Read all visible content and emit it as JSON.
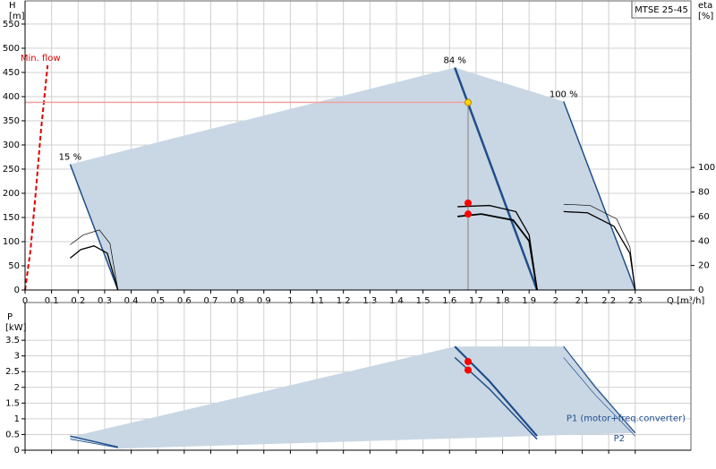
{
  "chart_data": [
    {
      "type": "line",
      "title": "MTSE 25-45",
      "ylabel": "H",
      "yunit": "[m]",
      "y2label": "eta",
      "y2unit": "[%]",
      "xlabel": "Q [m³/h]",
      "xlim": [
        0,
        2.51
      ],
      "xticks": [
        0,
        0.1,
        0.2,
        0.3,
        0.4,
        0.5,
        0.6,
        0.7,
        0.8,
        0.9,
        1,
        1.1,
        1.2,
        1.3,
        1.4,
        1.5,
        1.6,
        1.7,
        1.8,
        1.9,
        2,
        2.1,
        2.2,
        2.3
      ],
      "ylim": [
        0,
        598
      ],
      "yticks": [
        0,
        50,
        100,
        150,
        200,
        250,
        300,
        350,
        400,
        450,
        500,
        550
      ],
      "y2lim": [
        0,
        236
      ],
      "y2ticks": [
        0,
        20,
        40,
        60,
        80,
        100
      ],
      "grid": true,
      "show_xtick_labels": true,
      "series": [
        {
          "fill": true,
          "color": "#c9d7e4",
          "x": [
            0.17,
            1.62,
            2.03,
            2.3,
            0.35
          ],
          "values": [
            260,
            460,
            390,
            0,
            0
          ]
        },
        {
          "name": "15 %",
          "label_at": "start",
          "color": "#1f4e8c",
          "line_width": 1.5,
          "x": [
            0.17,
            0.35
          ],
          "values": [
            260,
            0
          ]
        },
        {
          "name": "84 %",
          "label_at": "start",
          "color": "#1f4e8c",
          "line_width": 2.5,
          "x": [
            1.62,
            1.93
          ],
          "values": [
            460,
            0
          ]
        },
        {
          "name": "100 %",
          "label_at": "start",
          "color": "#1f4e8c",
          "line_width": 1.5,
          "x": [
            2.03,
            2.3
          ],
          "values": [
            390,
            0
          ]
        },
        {
          "name": "Min. flow",
          "label_at": "end",
          "color": "#e00000",
          "line_width": 2,
          "dash": true,
          "x": [
            0,
            0.02,
            0.04,
            0.06,
            0.085
          ],
          "values": [
            0,
            80,
            200,
            330,
            465
          ]
        },
        {
          "color": "#f4a0a0",
          "line_width": 1.5,
          "x": [
            0,
            1.67
          ],
          "values": [
            388,
            388
          ]
        },
        {
          "color": "#808080",
          "line_width": 1,
          "x": [
            1.67,
            1.67
          ],
          "values": [
            388,
            0
          ]
        },
        {
          "axis": "y2",
          "color": "#000000",
          "line_width": 0.7,
          "x": [
            0.17,
            0.22,
            0.28,
            0.32,
            0.35
          ],
          "values": [
            37,
            45,
            49,
            38,
            0
          ]
        },
        {
          "axis": "y2",
          "color": "#000000",
          "line_width": 1.3,
          "x": [
            0.17,
            0.21,
            0.26,
            0.31,
            0.35
          ],
          "values": [
            26,
            33,
            36,
            30,
            0
          ]
        },
        {
          "axis": "y2",
          "color": "#000000",
          "line_width": 1.3,
          "x": [
            1.63,
            1.75,
            1.85,
            1.9,
            1.93
          ],
          "values": [
            68,
            69,
            64,
            45,
            0
          ]
        },
        {
          "axis": "y2",
          "color": "#000000",
          "line_width": 1.8,
          "x": [
            1.63,
            1.72,
            1.84,
            1.9,
            1.93
          ],
          "values": [
            60,
            62,
            57,
            40,
            0
          ]
        },
        {
          "axis": "y2",
          "color": "#000000",
          "line_width": 0.7,
          "x": [
            2.03,
            2.13,
            2.23,
            2.28,
            2.3
          ],
          "values": [
            70,
            69,
            58,
            35,
            0
          ]
        },
        {
          "axis": "y2",
          "color": "#000000",
          "line_width": 1.3,
          "x": [
            2.03,
            2.12,
            2.22,
            2.28,
            2.3
          ],
          "values": [
            64,
            63,
            52,
            30,
            0
          ]
        },
        {
          "axis": "y2",
          "marker": true,
          "color": "#ff0000",
          "x": [
            1.67,
            1.67
          ],
          "values": [
            71,
            62
          ]
        },
        {
          "marker": true,
          "color": "#ffd700",
          "x": [
            1.67
          ],
          "values": [
            388
          ]
        }
      ]
    },
    {
      "type": "line",
      "ylabel": "P",
      "yunit": "[kW]",
      "xlim": [
        0,
        2.51
      ],
      "xticks": [
        0,
        0.1,
        0.2,
        0.3,
        0.4,
        0.5,
        0.6,
        0.7,
        0.8,
        0.9,
        1,
        1.1,
        1.2,
        1.3,
        1.4,
        1.5,
        1.6,
        1.7,
        1.8,
        1.9,
        2,
        2.1,
        2.2,
        2.3
      ],
      "ylim": [
        0,
        4.7
      ],
      "yticks": [
        0,
        0.5,
        1,
        1.5,
        2,
        2.5,
        3,
        3.5
      ],
      "grid": true,
      "show_xtick_labels": false,
      "series": [
        {
          "fill": true,
          "color": "#c9d7e4",
          "x": [
            0.17,
            1.62,
            2.03,
            2.3,
            0.35,
            0.17
          ],
          "values": [
            0.42,
            3.3,
            3.3,
            0.55,
            0.05,
            0.35
          ]
        },
        {
          "color": "#1f4e8c",
          "line_width": 1.5,
          "x": [
            0.17,
            0.35
          ],
          "values": [
            0.45,
            0.1
          ]
        },
        {
          "color": "#1f4e8c",
          "line_width": 0.8,
          "x": [
            0.17,
            0.35
          ],
          "values": [
            0.35,
            0.08
          ]
        },
        {
          "color": "#1f4e8c",
          "line_width": 2.2,
          "x": [
            1.62,
            1.75,
            1.93
          ],
          "values": [
            3.3,
            2.2,
            0.45
          ]
        },
        {
          "color": "#1f4e8c",
          "line_width": 1.5,
          "x": [
            1.62,
            1.75,
            1.93
          ],
          "values": [
            2.95,
            1.95,
            0.35
          ]
        },
        {
          "name": "P1 (motor+freq.converter)",
          "label_at": "end",
          "color": "#1f4e8c",
          "line_width": 1.2,
          "x": [
            2.03,
            2.15,
            2.3
          ],
          "values": [
            3.3,
            2.0,
            0.55
          ]
        },
        {
          "name": "P2",
          "label_at": "end",
          "color": "#1f4e8c",
          "line_width": 0.7,
          "x": [
            2.03,
            2.15,
            2.3
          ],
          "values": [
            2.95,
            1.75,
            0.45
          ]
        },
        {
          "marker": true,
          "color": "#ff0000",
          "x": [
            1.67,
            1.67
          ],
          "values": [
            2.82,
            2.55
          ]
        }
      ]
    }
  ]
}
